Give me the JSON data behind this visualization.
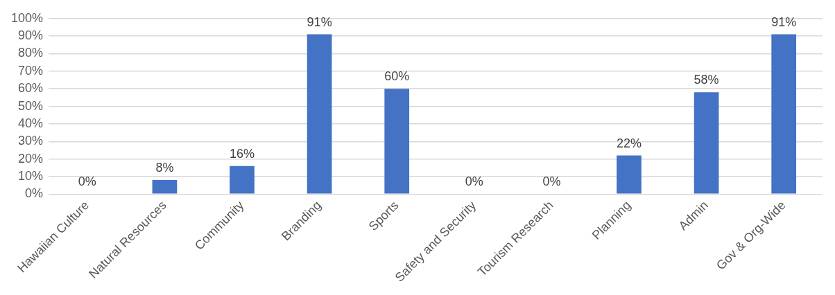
{
  "chart_data": {
    "type": "bar",
    "categories": [
      "Hawaiian Culture",
      "Natural Resources",
      "Community",
      "Branding",
      "Sports",
      "Safety and Security",
      "Tourism Research",
      "Planning",
      "Admin",
      "Gov & Org-Wide"
    ],
    "values": [
      0,
      8,
      16,
      91,
      60,
      0,
      0,
      22,
      58,
      91
    ],
    "value_labels": [
      "0%",
      "8%",
      "16%",
      "91%",
      "60%",
      "0%",
      "0%",
      "22%",
      "58%",
      "91%"
    ],
    "color": "#4472c4",
    "ylim": [
      0,
      100
    ],
    "yticks": [
      {
        "value": 0,
        "label": "0%"
      },
      {
        "value": 10,
        "label": "10%"
      },
      {
        "value": 20,
        "label": "20%"
      },
      {
        "value": 30,
        "label": "30%"
      },
      {
        "value": 40,
        "label": "40%"
      },
      {
        "value": 50,
        "label": "50%"
      },
      {
        "value": 60,
        "label": "60%"
      },
      {
        "value": 70,
        "label": "70%"
      },
      {
        "value": 80,
        "label": "80%"
      },
      {
        "value": 90,
        "label": "90%"
      },
      {
        "value": 100,
        "label": "100%"
      }
    ],
    "grid": "y",
    "legend": false
  }
}
